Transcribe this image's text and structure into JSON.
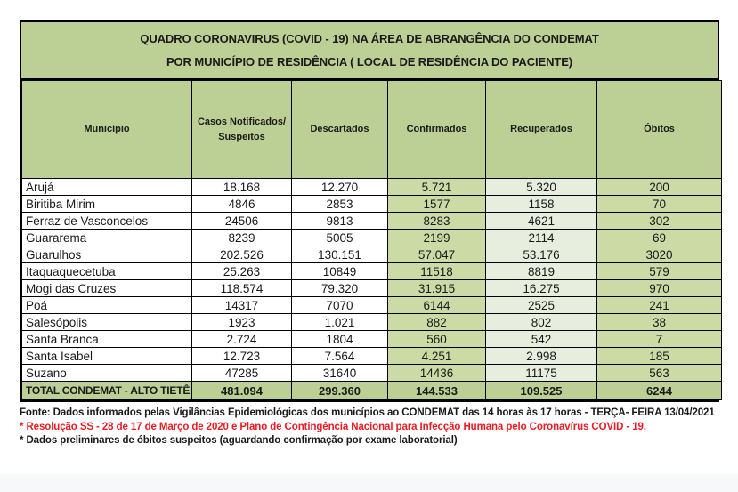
{
  "title": {
    "line1": "QUADRO CORONAVIRUS (COVID - 19) NA ÁREA DE ABRANGÊNCIA DO CONDEMAT",
    "line2": "POR MUNICÍPIO DE RESIDÊNCIA ( LOCAL DE RESIDÊNCIA DO PACIENTE)"
  },
  "table": {
    "columns": [
      {
        "label": "Município",
        "lines": [
          "Município"
        ]
      },
      {
        "label": "Casos Notificados/ Suspeitos",
        "lines": [
          "Casos Notificados/",
          "Suspeitos"
        ]
      },
      {
        "label": "Descartados",
        "lines": [
          "Descartados"
        ]
      },
      {
        "label": "Confirmados",
        "lines": [
          "Confirmados"
        ]
      },
      {
        "label": "Recuperados",
        "lines": [
          "Recuperados"
        ]
      },
      {
        "label": "Óbitos",
        "lines": [
          "Óbitos"
        ]
      }
    ],
    "rows": [
      [
        "Arujá",
        "18.168",
        "12.270",
        "5.721",
        "5.320",
        "200"
      ],
      [
        "Biritiba Mirim",
        "4846",
        "2853",
        "1577",
        "1158",
        "70"
      ],
      [
        "Ferraz de Vasconcelos",
        "24506",
        "9813",
        "8283",
        "4621",
        "302"
      ],
      [
        "Guararema",
        "8239",
        "5005",
        "2199",
        "2114",
        "69"
      ],
      [
        "Guarulhos",
        "202.526",
        "130.151",
        "57.047",
        "53.176",
        "3020"
      ],
      [
        "Itaquaquecetuba",
        "25.263",
        "10849",
        "11518",
        "8819",
        "579"
      ],
      [
        "Mogi das Cruzes",
        "118.574",
        "79.320",
        "31.915",
        "16.275",
        "970"
      ],
      [
        "Poá",
        "14317",
        "7070",
        "6144",
        "2525",
        "241"
      ],
      [
        "Salesópolis",
        "1923",
        "1.021",
        "882",
        "802",
        "38"
      ],
      [
        "Santa Branca",
        "2.724",
        "1804",
        "560",
        "542",
        "7"
      ],
      [
        "Santa Isabel",
        "12.723",
        "7.564",
        "4.251",
        "2.998",
        "185"
      ],
      [
        "Suzano",
        "47285",
        "31640",
        "14436",
        "11175",
        "563"
      ]
    ],
    "total": {
      "label": "TOTAL CONDEMAT - ALTO TIETÊ",
      "values": [
        "481.094",
        "299.360",
        "144.533",
        "109.525",
        "6244"
      ]
    }
  },
  "footnotes": {
    "fonte": "Fonte: Dados informados pelas Vigilâncias Epidemiológicas dos municípios ao CONDEMAT das 14 horas às 17 horas - TERÇA- FEIRA  13/04/2021",
    "resolucao": "* Resolução SS - 28 de 17 de Março de 2020 e Plano de Contingência Nacional para Infecção Humana pelo Coronavírus COVID - 19.",
    "preliminares": "* Dados preliminares de óbitos suspeitos (aguardando confirmação por exame laboratorial)"
  },
  "colors": {
    "header_green": "#bcd095",
    "cell_green": "#ccdaa6",
    "cell_light_green": "#e8eedd",
    "footnote_red": "#ec1c24"
  }
}
